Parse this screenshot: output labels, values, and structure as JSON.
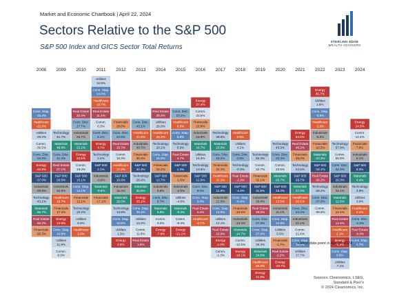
{
  "header": {
    "text": "Market and Economic Chartbook | April 22, 2024"
  },
  "title": "Sectors Relative to the S&P 500",
  "subtitle": "S&P 500 Index and GICS Sector Total Returns",
  "logo": {
    "line1": "STERLING EDGE",
    "line2": "WEALTH ADVISORS"
  },
  "footnote": "Latest data point is Apr 19, 2024",
  "source": {
    "line1": "Sources: Clearnomics, LSEG,",
    "line2": "Standard & Poor's",
    "line3": "© 2024 Clearnomics, Inc."
  },
  "colors": {
    "S&P 500": "#2e4d7a",
    "Energy": "#c23a38",
    "Materials": "#2f8f7f",
    "Industrials": "#a8a8a8",
    "Cons. Disc.": "#8bb0cf",
    "Cons. Stap.": "#5e86b8",
    "Healthcare": "#d9603a",
    "Financials": "#e29a6f",
    "Technology": "#b8cde3",
    "Comm.": "#d6e3ef",
    "Utilities": "#c7d5e8",
    "Real Estate": "#b0495a"
  },
  "chart_data": {
    "type": "table",
    "years": [
      "2008",
      "2009",
      "2010",
      "2011",
      "2012",
      "2013",
      "2014",
      "2015",
      "2016",
      "2017",
      "2018",
      "2019",
      "2020",
      "2021",
      "2022",
      "2023",
      "2024"
    ],
    "columns": [
      {
        "year": "2008",
        "offset": 3,
        "cells": [
          [
            "Cons. Stap.",
            "-15.4%"
          ],
          [
            "Healthcare",
            "-22.8%"
          ],
          [
            "Utilities",
            "-29.0%"
          ],
          [
            "Comm.",
            "-30.5%"
          ],
          [
            "Cons. Disc.",
            "-33.5%"
          ],
          [
            "Energy",
            "-34.9%"
          ],
          [
            "S&P 500",
            "-37.0%"
          ],
          [
            "Industrials",
            "-39.9%"
          ],
          [
            "Technology",
            "-43.1%"
          ],
          [
            "Materials",
            "-45.7%"
          ],
          [
            "Real Estate",
            "-48.2%"
          ],
          [
            "Financials",
            "-55.3%"
          ]
        ]
      },
      {
        "year": "2009",
        "offset": 5,
        "cells": [
          [
            "Technology",
            "61.7%"
          ],
          [
            "Materials",
            "48.6%"
          ],
          [
            "Cons. Disc.",
            "41.3%"
          ],
          [
            "Real Estate",
            "27.1%"
          ],
          [
            "S&P 500",
            "26.5%"
          ],
          [
            "Industrials",
            "20.9%"
          ],
          [
            "Healthcare",
            "19.7%"
          ],
          [
            "Financials",
            "17.2%"
          ],
          [
            "Energy",
            "13.8%"
          ],
          [
            "Cons. Stap.",
            "14.9%"
          ],
          [
            "Utilities",
            "11.9%"
          ],
          [
            "Comm.",
            "8.9%"
          ]
        ]
      },
      {
        "year": "2010",
        "offset": 3,
        "cells": [
          [
            "Real Estate",
            "32.3%"
          ],
          [
            "Cons. Disc.",
            "27.7%"
          ],
          [
            "Industrials",
            "26.7%"
          ],
          [
            "Materials",
            "22.2%"
          ],
          [
            "Energy",
            "20.5%"
          ],
          [
            "Comm.",
            "19.0%"
          ],
          [
            "S&P 500",
            "15.1%"
          ],
          [
            "Cons. Stap.",
            "14.1%"
          ],
          [
            "Financials",
            "12.1%"
          ],
          [
            "Technology",
            "10.2%"
          ],
          [
            "Utilities",
            "5.5%"
          ],
          [
            "Healthcare",
            "2.9%"
          ]
        ]
      },
      {
        "year": "2011",
        "offset": 0,
        "cells": [
          [
            "Utilities",
            "19.9%"
          ],
          [
            "Cons. Stap.",
            "14.0%"
          ],
          [
            "Healthcare",
            "12.7%"
          ],
          [
            "Real Estate",
            "11.4%"
          ],
          [
            "Comm.",
            "6.3%"
          ],
          [
            "Cons. Disc.",
            "6.1%"
          ],
          [
            "Energy",
            "4.7%"
          ],
          [
            "Technology",
            "2.4%"
          ],
          [
            "S&P 500",
            "2.1%"
          ],
          [
            "Industrials",
            "-0.6%"
          ],
          [
            "Materials",
            "-9.8%"
          ],
          [
            "Financials",
            "-17.1%"
          ]
        ]
      },
      {
        "year": "2012",
        "offset": 4,
        "cells": [
          [
            "Financials",
            "28.8%"
          ],
          [
            "Cons. Disc.",
            "23.9%"
          ],
          [
            "Real Estate",
            "19.7%"
          ],
          [
            "Comm.",
            "18.3%"
          ],
          [
            "Healthcare",
            "17.9%"
          ],
          [
            "S&P 500",
            "16.0%"
          ],
          [
            "Industrials",
            "15.4%"
          ],
          [
            "Materials",
            "15.0%"
          ],
          [
            "Technology",
            "14.8%"
          ],
          [
            "Cons. Stap.",
            "10.8%"
          ],
          [
            "Utilities",
            "1.3%"
          ],
          [
            "Energy",
            "4.6%"
          ]
        ]
      },
      {
        "year": "2013",
        "offset": 4,
        "cells": [
          [
            "Cons. Disc.",
            "43.1%"
          ],
          [
            "Healthcare",
            "41.5%"
          ],
          [
            "Industrials",
            "40.7%"
          ],
          [
            "Financials",
            "35.6%"
          ],
          [
            "S&P 500",
            "32.4%"
          ],
          [
            "Technology",
            "28.4%"
          ],
          [
            "Materials",
            "25.6%"
          ],
          [
            "Energy",
            "25.1%"
          ],
          [
            "Cons. Stap.",
            "26.1%"
          ],
          [
            "Utilities",
            "13.2%"
          ],
          [
            "Comm.",
            "11.5%"
          ],
          [
            "Real Estate",
            "1.6%"
          ]
        ]
      },
      {
        "year": "2014",
        "offset": 3,
        "cells": [
          [
            "Real Estate",
            "30.2%"
          ],
          [
            "Utilities",
            "29.0%"
          ],
          [
            "Healthcare",
            "25.3%"
          ],
          [
            "Technology",
            "20.1%"
          ],
          [
            "Cons. Stap.",
            "16.0%"
          ],
          [
            "Financials",
            "15.2%"
          ],
          [
            "S&P 500",
            "13.7%"
          ],
          [
            "Industrials",
            "9.8%"
          ],
          [
            "Cons. Disc.",
            "9.7%"
          ],
          [
            "Materials",
            "6.9%"
          ],
          [
            "Comm.",
            "3.0%"
          ],
          [
            "Energy",
            "-7.8%"
          ]
        ]
      },
      {
        "year": "2015",
        "offset": 3,
        "cells": [
          [
            "Cons. Disc.",
            "10.1%"
          ],
          [
            "Healthcare",
            "6.9%"
          ],
          [
            "Cons. Stap.",
            "6.6%"
          ],
          [
            "Technology",
            "5.9%"
          ],
          [
            "Real Estate",
            "4.7%"
          ],
          [
            "S&P 500",
            "1.4%"
          ],
          [
            "Financials",
            "-1.5%"
          ],
          [
            "Industrials",
            "-2.5%"
          ],
          [
            "Utilities",
            "-4.8%"
          ],
          [
            "Materials",
            "-8.4%"
          ],
          [
            "Comm.",
            "-8.4%"
          ],
          [
            "Energy",
            "-21.1%"
          ]
        ]
      },
      {
        "year": "2016",
        "offset": 2,
        "cells": [
          [
            "Energy",
            "27.4%"
          ],
          [
            "Comm.",
            "23.5%"
          ],
          [
            "Financials",
            "22.8%"
          ],
          [
            "Industrials",
            "18.9%"
          ],
          [
            "Materials",
            "16.7%"
          ],
          [
            "Utilities",
            "16.3%"
          ],
          [
            "Technology",
            "13.8%"
          ],
          [
            "S&P 500",
            "12.0%"
          ],
          [
            "Cons. Disc.",
            "6.0%"
          ],
          [
            "Cons. Stap.",
            "5.4%"
          ],
          [
            "Real Estate",
            "3.4%"
          ],
          [
            "Healthcare",
            "-2.7%"
          ]
        ]
      },
      {
        "year": "2017",
        "offset": 5,
        "cells": [
          [
            "Technology",
            "38.8%"
          ],
          [
            "Materials",
            "23.8%"
          ],
          [
            "Cons. Disc.",
            "23.0%"
          ],
          [
            "Financials",
            "22.2%"
          ],
          [
            "Healthcare",
            "22.1%"
          ],
          [
            "S&P 500",
            "21.8%"
          ],
          [
            "Industrials",
            "21.0%"
          ],
          [
            "Cons. Stap.",
            "13.5%"
          ],
          [
            "Utilities",
            "12.1%"
          ],
          [
            "Real Estate",
            "10.9%"
          ],
          [
            "Energy",
            "-1.0%"
          ],
          [
            "Comm.",
            "-1.3%"
          ]
        ]
      },
      {
        "year": "2018",
        "offset": 5,
        "cells": [
          [
            "Healthcare",
            "6.5%"
          ],
          [
            "Utilities",
            "4.1%"
          ],
          [
            "Cons. Disc.",
            "0.8%"
          ],
          [
            "Technology",
            "-0.3%"
          ],
          [
            "Real Estate",
            "-2.2%"
          ],
          [
            "S&P 500",
            "-4.4%"
          ],
          [
            "Cons. Stap.",
            "-8.4%"
          ],
          [
            "Financials",
            "-13.0%"
          ],
          [
            "Industrials",
            "-13.3%"
          ],
          [
            "Materials",
            "-14.7%"
          ],
          [
            "Comm.",
            "-12.5%"
          ],
          [
            "Energy",
            "-18.1%"
          ]
        ]
      },
      {
        "year": "2019",
        "offset": 7,
        "cells": [
          [
            "Technology",
            "50.3%"
          ],
          [
            "Comm.",
            "32.7%"
          ],
          [
            "Financials",
            "32.1%"
          ],
          [
            "S&P 500",
            "31.5%"
          ],
          [
            "Industrials",
            "29.4%"
          ],
          [
            "Real Estate",
            "29.0%"
          ],
          [
            "Cons. Disc.",
            "27.9%"
          ],
          [
            "Cons. Stap.",
            "27.6%"
          ],
          [
            "Utilities",
            "26.3%"
          ],
          [
            "Materials",
            "24.6%"
          ],
          [
            "Healthcare",
            "20.8%"
          ],
          [
            "Energy",
            "11.8%"
          ]
        ]
      },
      {
        "year": "2020",
        "offset": 6,
        "cells": [
          [
            "Technology",
            "43.9%"
          ],
          [
            "Cons. Disc.",
            "33.3%"
          ],
          [
            "Comm.",
            "23.6%"
          ],
          [
            "Materials",
            "20.7%"
          ],
          [
            "S&P 500",
            "18.4%"
          ],
          [
            "Healthcare",
            "13.5%"
          ],
          [
            "Industrials",
            "11.1%"
          ],
          [
            "Cons. Stap.",
            "10.8%"
          ],
          [
            "Utilities",
            "0.5%"
          ],
          [
            "Financials",
            "-1.7%"
          ],
          [
            "Real Estate",
            "-2.2%"
          ],
          [
            "Energy",
            "-33.7%"
          ]
        ]
      },
      {
        "year": "2021",
        "offset": 5,
        "cells": [
          [
            "Energy",
            "54.6%"
          ],
          [
            "Real Estate",
            "46.2%"
          ],
          [
            "Financials",
            "35.0%"
          ],
          [
            "Technology",
            "34.5%"
          ],
          [
            "S&P 500",
            "28.7%"
          ],
          [
            "Materials",
            "27.3%"
          ],
          [
            "Healthcare",
            "26.1%"
          ],
          [
            "Cons. Disc.",
            "24.4%"
          ],
          [
            "Industrials",
            "21.1%"
          ],
          [
            "Comm.",
            "21.6%"
          ],
          [
            "Cons. Stap.",
            "18.6%"
          ],
          [
            "Utilities",
            "17.7%"
          ]
        ]
      },
      {
        "year": "2022",
        "offset": 1,
        "cells": [
          [
            "Energy",
            "65.7%"
          ],
          [
            "Utilities",
            "1.6%"
          ],
          [
            "Cons. Stap.",
            "-0.6%"
          ],
          [
            "Healthcare",
            "-2.0%"
          ],
          [
            "Industrials",
            "-5.5%"
          ],
          [
            "Financials",
            "-10.5%"
          ],
          [
            "Materials",
            "-12.3%"
          ],
          [
            "S&P 500",
            "-18.1%"
          ],
          [
            "Real Estate",
            "-26.2%"
          ],
          [
            "Technology",
            "-28.2%"
          ],
          [
            "Cons. Disc.",
            "-37.0%"
          ],
          [
            "Comm.",
            "-39.9%"
          ]
        ]
      },
      {
        "year": "2023",
        "offset": 6,
        "cells": [
          [
            "Technology",
            "57.8%"
          ],
          [
            "Comm.",
            "55.8%"
          ],
          [
            "Cons. Disc.",
            "42.4%"
          ],
          [
            "S&P 500",
            "26.3%"
          ],
          [
            "Industrials",
            "18.1%"
          ],
          [
            "Materials",
            "12.6%"
          ],
          [
            "Financials",
            "12.1%"
          ],
          [
            "Real Estate",
            "12.4%"
          ],
          [
            "Healthcare",
            "2.1%"
          ],
          [
            "Energy",
            "-1.3%"
          ],
          [
            "Cons. Stap.",
            "0.5%"
          ],
          [
            "Utilities",
            "-7.1%"
          ]
        ]
      },
      {
        "year": "2024",
        "offset": 4,
        "cells": [
          [
            "Energy",
            "14.5%"
          ],
          [
            "Comm.",
            "14.4%"
          ],
          [
            "Financials",
            "7.8%"
          ],
          [
            "Industrials",
            "8.1%"
          ],
          [
            "S&P 500",
            "6.0%"
          ],
          [
            "Materials",
            "4.4%"
          ],
          [
            "Technology",
            "3.9%"
          ],
          [
            "Utilities",
            "3.0%"
          ],
          [
            "Healthcare",
            "2.2%"
          ],
          [
            "Cons. Disc.",
            "-2.5%"
          ],
          [
            "Real Estate",
            "-6.0%"
          ],
          [
            "Cons. Stap.",
            "4.7%"
          ]
        ]
      }
    ]
  }
}
